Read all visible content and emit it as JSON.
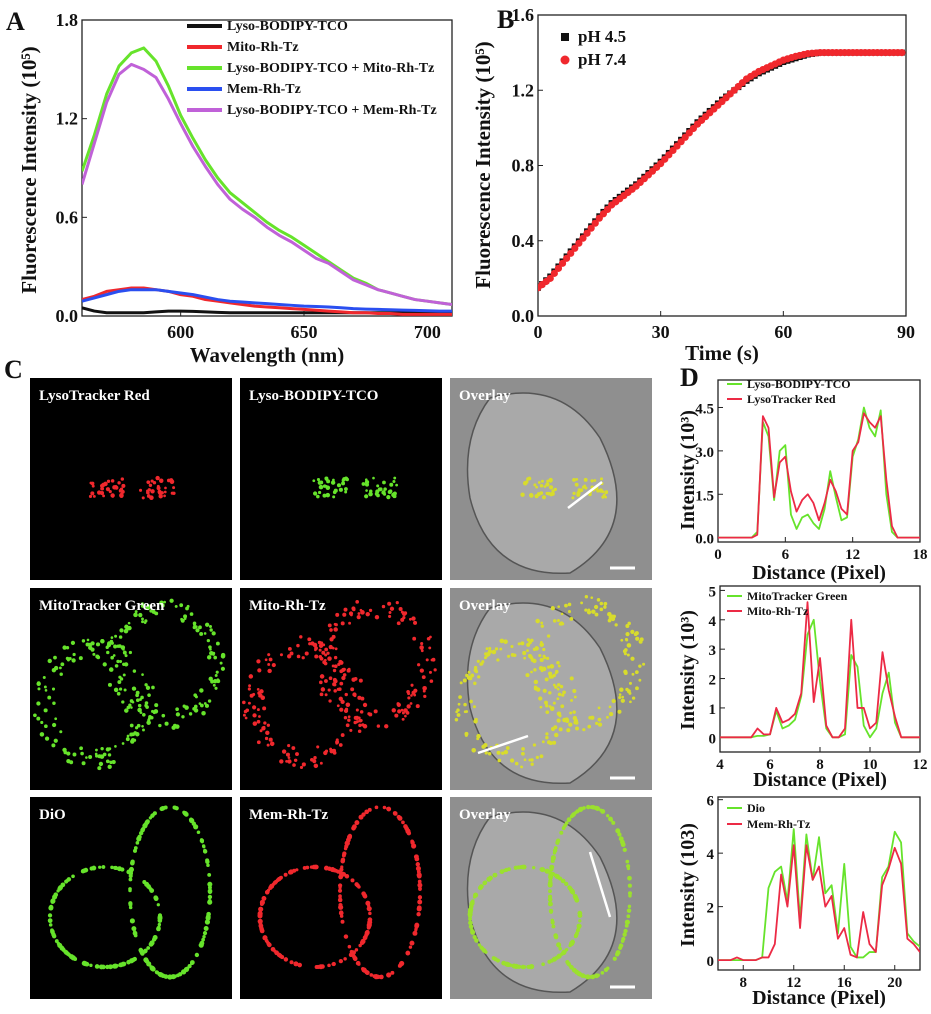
{
  "panel_labels": {
    "a": "A",
    "b": "B",
    "c": "C",
    "d": "D"
  },
  "colors": {
    "black": "#111111",
    "red": "#f0282d",
    "green": "#66e32b",
    "blue": "#2a4ff0",
    "purple": "#c061d8",
    "pink_red": "#ec2a45"
  },
  "images": {
    "rows": [
      {
        "labels": [
          "LysoTracker Red",
          "Lyso-BODIPY-TCO",
          "Overlay"
        ]
      },
      {
        "labels": [
          "MitoTracker Green",
          "Mito-Rh-Tz",
          "Overlay"
        ]
      },
      {
        "labels": [
          "DiO",
          "Mem-Rh-Tz",
          "Overlay"
        ]
      }
    ]
  },
  "chart_data": [
    {
      "id": "A",
      "type": "line",
      "xlabel": "Wavelength (nm)",
      "ylabel": "Fluorescence Intensity (10⁵)",
      "xlim": [
        560,
        710
      ],
      "ylim": [
        0,
        1.8
      ],
      "xticks": [
        600,
        650,
        700
      ],
      "yticks": [
        0.0,
        0.6,
        1.2,
        1.8
      ],
      "ytick_labels": [
        "0.0",
        "0.6",
        "1.2",
        "1.8"
      ],
      "legend": "top-right",
      "x": [
        560,
        565,
        570,
        575,
        580,
        585,
        590,
        595,
        600,
        605,
        610,
        615,
        620,
        625,
        630,
        635,
        640,
        645,
        650,
        655,
        660,
        665,
        670,
        675,
        680,
        685,
        690,
        695,
        700,
        705,
        710
      ],
      "series": [
        {
          "name": "Lyso-BODIPY-TCO",
          "color": "#111111",
          "values": [
            0.05,
            0.03,
            0.02,
            0.02,
            0.02,
            0.02,
            0.025,
            0.03,
            0.03,
            0.028,
            0.025,
            0.022,
            0.02,
            0.02,
            0.02,
            0.02,
            0.02,
            0.02,
            0.02,
            0.02,
            0.02,
            0.02,
            0.02,
            0.02,
            0.02,
            0.02,
            0.02,
            0.02,
            0.02,
            0.02,
            0.02
          ]
        },
        {
          "name": "Mito-Rh-Tz",
          "color": "#f0282d",
          "values": [
            0.1,
            0.12,
            0.15,
            0.16,
            0.17,
            0.17,
            0.16,
            0.15,
            0.13,
            0.12,
            0.1,
            0.09,
            0.08,
            0.07,
            0.06,
            0.055,
            0.05,
            0.045,
            0.04,
            0.035,
            0.03,
            0.025,
            0.02,
            0.02,
            0.015,
            0.015,
            0.01,
            0.01,
            0.01,
            0.01,
            0.01
          ]
        },
        {
          "name": "Lyso-BODIPY-TCO + Mito-Rh-Tz",
          "color": "#66e32b",
          "values": [
            0.88,
            1.1,
            1.35,
            1.52,
            1.6,
            1.63,
            1.55,
            1.4,
            1.22,
            1.08,
            0.95,
            0.84,
            0.75,
            0.69,
            0.63,
            0.57,
            0.52,
            0.48,
            0.43,
            0.38,
            0.33,
            0.28,
            0.23,
            0.2,
            0.16,
            0.14,
            0.12,
            0.1,
            0.09,
            0.08,
            0.07
          ]
        },
        {
          "name": "Mem-Rh-Tz",
          "color": "#2a4ff0",
          "values": [
            0.09,
            0.11,
            0.13,
            0.15,
            0.16,
            0.16,
            0.16,
            0.15,
            0.14,
            0.13,
            0.115,
            0.1,
            0.09,
            0.085,
            0.08,
            0.075,
            0.07,
            0.065,
            0.06,
            0.058,
            0.055,
            0.05,
            0.045,
            0.042,
            0.04,
            0.038,
            0.036,
            0.034,
            0.032,
            0.03,
            0.03
          ]
        },
        {
          "name": "Lyso-BODIPY-TCO + Mem-Rh-Tz",
          "color": "#c061d8",
          "values": [
            0.8,
            1.05,
            1.3,
            1.47,
            1.53,
            1.5,
            1.45,
            1.32,
            1.17,
            1.03,
            0.91,
            0.8,
            0.71,
            0.65,
            0.6,
            0.54,
            0.49,
            0.45,
            0.4,
            0.35,
            0.32,
            0.27,
            0.22,
            0.19,
            0.16,
            0.14,
            0.12,
            0.1,
            0.09,
            0.08,
            0.07
          ]
        }
      ]
    },
    {
      "id": "B",
      "type": "scatter",
      "xlabel": "Time (s)",
      "ylabel": "Fluorescence Intensity (10⁵)",
      "xlim": [
        0,
        90
      ],
      "ylim": [
        0,
        1.6
      ],
      "xticks": [
        0,
        30,
        60,
        90
      ],
      "yticks": [
        0.0,
        0.4,
        0.8,
        1.2,
        1.6
      ],
      "ytick_labels": [
        "0.0",
        "0.4",
        "0.8",
        "1.2",
        "1.6"
      ],
      "legend": "top-left",
      "x": [
        0,
        3,
        6,
        9,
        12,
        15,
        18,
        21,
        24,
        27,
        30,
        33,
        36,
        39,
        42,
        45,
        48,
        51,
        54,
        57,
        60,
        63,
        66,
        69,
        72,
        75,
        78,
        81,
        84,
        87,
        90
      ],
      "series": [
        {
          "name": "pH 4.5",
          "color": "#111111",
          "marker": "square",
          "values": [
            0.15,
            0.21,
            0.29,
            0.37,
            0.45,
            0.53,
            0.6,
            0.65,
            0.7,
            0.76,
            0.82,
            0.89,
            0.96,
            1.03,
            1.09,
            1.15,
            1.2,
            1.25,
            1.29,
            1.32,
            1.35,
            1.37,
            1.39,
            1.4,
            1.4,
            1.4,
            1.4,
            1.4,
            1.4,
            1.4,
            1.4
          ]
        },
        {
          "name": "pH 7.4",
          "color": "#f0282d",
          "marker": "circle",
          "values": [
            0.15,
            0.2,
            0.28,
            0.36,
            0.44,
            0.52,
            0.59,
            0.64,
            0.69,
            0.75,
            0.81,
            0.88,
            0.95,
            1.02,
            1.08,
            1.14,
            1.2,
            1.26,
            1.3,
            1.33,
            1.36,
            1.38,
            1.395,
            1.4,
            1.4,
            1.4,
            1.4,
            1.4,
            1.4,
            1.4,
            1.4
          ]
        }
      ]
    },
    {
      "id": "D1",
      "type": "line",
      "xlabel": "Distance (Pixel)",
      "ylabel": "Intensity (10³)",
      "xlim": [
        0,
        18
      ],
      "ylim": [
        -0.15,
        5.45
      ],
      "xticks": [
        0,
        6,
        12,
        18
      ],
      "yticks": [
        0.0,
        1.5,
        3.0,
        4.5
      ],
      "ytick_labels": [
        "0.0",
        "1.5",
        "3.0",
        "4.5"
      ],
      "legend": "top-left",
      "x": [
        0,
        0.5,
        1,
        1.5,
        2,
        2.5,
        3,
        3.5,
        4,
        4.5,
        5,
        5.5,
        6,
        6.5,
        7,
        7.5,
        8,
        8.5,
        9,
        9.5,
        10,
        10.5,
        11,
        11.5,
        12,
        12.5,
        13,
        13.5,
        14,
        14.5,
        15,
        15.5,
        16,
        16.5,
        17,
        17.5,
        18
      ],
      "series": [
        {
          "name": "Lyso-BODIPY-TCO",
          "color": "#66e32b",
          "values": [
            0,
            0,
            0,
            0,
            0,
            0,
            0,
            0.2,
            4.0,
            3.5,
            1.3,
            3.0,
            3.2,
            0.8,
            0.3,
            0.7,
            0.8,
            0.5,
            0.3,
            1.0,
            2.3,
            1.4,
            0.6,
            0.7,
            2.8,
            3.4,
            4.5,
            3.8,
            3.5,
            4.4,
            1.5,
            0.2,
            0,
            0,
            0,
            0,
            0
          ]
        },
        {
          "name": "LysoTracker Red",
          "color": "#ec2a45",
          "values": [
            0,
            0,
            0,
            0,
            0,
            0,
            0,
            0.1,
            4.2,
            3.8,
            1.4,
            2.6,
            2.8,
            1.6,
            0.9,
            1.3,
            1.5,
            1.2,
            0.6,
            1.2,
            2.0,
            1.6,
            1.0,
            0.8,
            3.0,
            3.3,
            4.3,
            4.0,
            3.8,
            4.2,
            2.0,
            0.4,
            0,
            0,
            0,
            0,
            0
          ]
        }
      ]
    },
    {
      "id": "D2",
      "type": "line",
      "xlabel": "Distance (Pixel)",
      "ylabel": "Intensity (10³)",
      "xlim": [
        4,
        12
      ],
      "ylim": [
        -0.5,
        5.15
      ],
      "xticks": [
        4,
        6,
        8,
        10,
        12
      ],
      "yticks": [
        0,
        1,
        2,
        3,
        4,
        5
      ],
      "ytick_labels": [
        "0",
        "1",
        "2",
        "3",
        "4",
        "5"
      ],
      "legend": "top-left",
      "x": [
        4,
        4.25,
        4.5,
        4.75,
        5,
        5.25,
        5.5,
        5.75,
        6,
        6.25,
        6.5,
        6.75,
        7,
        7.25,
        7.5,
        7.75,
        8,
        8.25,
        8.5,
        8.75,
        9,
        9.25,
        9.5,
        9.75,
        10,
        10.25,
        10.5,
        10.75,
        11,
        11.25,
        11.5,
        11.75,
        12
      ],
      "series": [
        {
          "name": "MitoTracker Green",
          "color": "#66e32b",
          "values": [
            0,
            0,
            0,
            0,
            0,
            0,
            0.05,
            0.05,
            0.1,
            0.9,
            0.3,
            0.4,
            0.6,
            1.4,
            3.5,
            4.0,
            1.9,
            0.3,
            0,
            0,
            0.1,
            2.8,
            2.4,
            0.4,
            0,
            0.3,
            1.5,
            2.2,
            0.5,
            0,
            0,
            0,
            0
          ]
        },
        {
          "name": "Mito-Rh-Tz",
          "color": "#ec2a45",
          "values": [
            0,
            0,
            0,
            0,
            0,
            0,
            0.3,
            0.1,
            0.1,
            1.0,
            0.5,
            0.6,
            0.8,
            1.5,
            4.6,
            1.2,
            2.7,
            0.4,
            0,
            0,
            0.3,
            4.0,
            1.0,
            1.0,
            0.3,
            0.5,
            2.9,
            1.6,
            0.7,
            0,
            0,
            0,
            0
          ]
        }
      ]
    },
    {
      "id": "D3",
      "type": "line",
      "xlabel": "Distance (Pixel)",
      "ylabel": "Intensity (103)",
      "xlim": [
        6,
        22
      ],
      "ylim": [
        -0.37,
        6.1
      ],
      "xticks": [
        8,
        12,
        16,
        20
      ],
      "yticks": [
        0,
        2,
        4,
        6
      ],
      "ytick_labels": [
        "0",
        "2",
        "4",
        "6"
      ],
      "legend": "top-left",
      "x": [
        6,
        6.5,
        7,
        7.5,
        8,
        8.5,
        9,
        9.5,
        10,
        10.5,
        11,
        11.5,
        12,
        12.5,
        13,
        13.5,
        14,
        14.5,
        15,
        15.5,
        16,
        16.5,
        17,
        17.5,
        18,
        18.5,
        19,
        19.5,
        20,
        20.5,
        21,
        21.5,
        22
      ],
      "series": [
        {
          "name": "Dio",
          "color": "#66e32b",
          "values": [
            0,
            0,
            0,
            0,
            0,
            0,
            0,
            0.1,
            2.7,
            3.3,
            3.5,
            2.2,
            4.9,
            1.5,
            4.7,
            3.0,
            4.6,
            2.5,
            2.8,
            1.0,
            3.6,
            0.5,
            0.1,
            0.1,
            0.3,
            0.3,
            3.1,
            3.5,
            4.8,
            4.4,
            1.0,
            0.7,
            0.5
          ]
        },
        {
          "name": "Mem-Rh-Tz",
          "color": "#ec2a45",
          "values": [
            0,
            0,
            0,
            0.1,
            0,
            0,
            0,
            0.1,
            0.1,
            0.6,
            3.2,
            2.0,
            4.3,
            1.2,
            4.3,
            3.0,
            3.5,
            2.0,
            2.4,
            0.8,
            1.2,
            0.2,
            0.1,
            1.8,
            0.6,
            0.3,
            2.8,
            3.4,
            4.2,
            3.6,
            0.8,
            0.6,
            0.3
          ]
        }
      ]
    }
  ]
}
